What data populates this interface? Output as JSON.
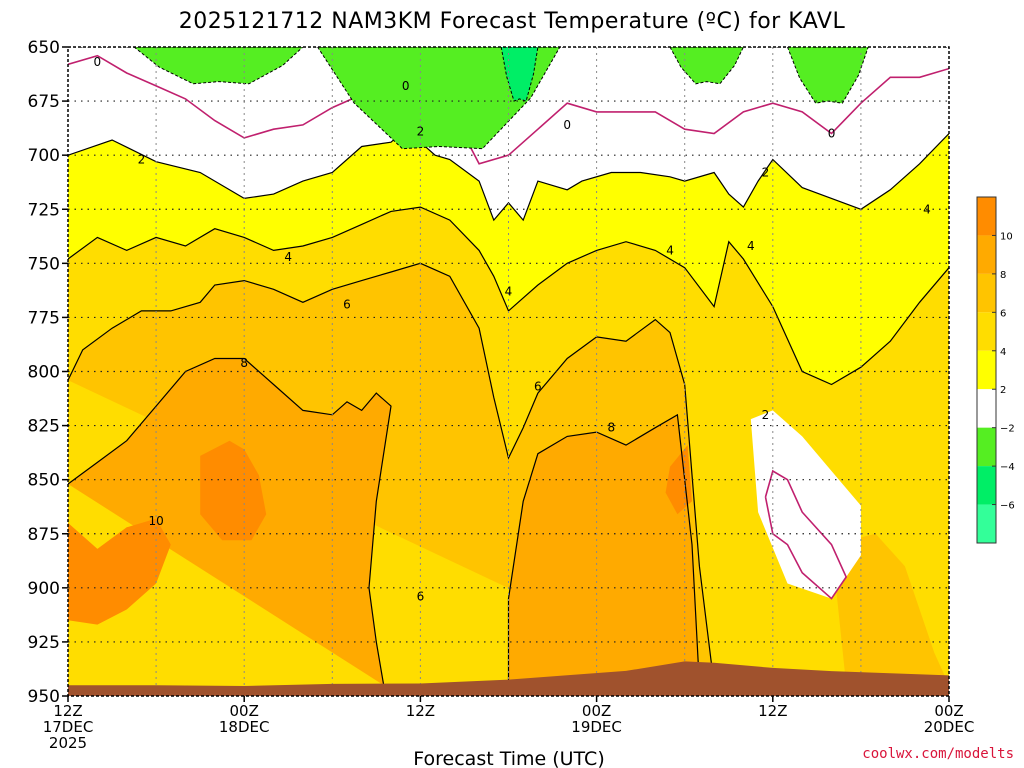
{
  "chart_data": {
    "type": "heatmap",
    "title": "2025121712 NAM3KM Forecast Temperature (ºC) for KAVL",
    "xlabel": "Forecast Time (UTC)",
    "ylabel": "",
    "credit": "coolwx.com/modelts",
    "yaxis": {
      "range": [
        650,
        950
      ],
      "inverted": true,
      "ticks": [
        "650",
        "675",
        "700",
        "725",
        "750",
        "775",
        "800",
        "825",
        "850",
        "875",
        "900",
        "925",
        "950"
      ]
    },
    "xaxis": {
      "range_hours": [
        0,
        60
      ],
      "ticks": [
        {
          "hour": 0,
          "line1": "12Z",
          "line2": "17DEC",
          "line3": "2025"
        },
        {
          "hour": 12,
          "line1": "00Z",
          "line2": "18DEC",
          "line3": ""
        },
        {
          "hour": 24,
          "line1": "12Z",
          "line2": "",
          "line3": ""
        },
        {
          "hour": 36,
          "line1": "00Z",
          "line2": "19DEC",
          "line3": ""
        },
        {
          "hour": 48,
          "line1": "12Z",
          "line2": "",
          "line3": ""
        },
        {
          "hour": 60,
          "line1": "00Z",
          "line2": "20DEC",
          "line3": ""
        }
      ]
    },
    "grid": true,
    "colorbar": {
      "bins": [
        {
          "lo": -8,
          "hi": -6,
          "color": "#33ff99"
        },
        {
          "lo": -6,
          "hi": -4,
          "color": "#00ee66"
        },
        {
          "lo": -4,
          "hi": -2,
          "color": "#55ee22"
        },
        {
          "lo": -2,
          "hi": 2,
          "color": "#ffffff"
        },
        {
          "lo": 2,
          "hi": 4,
          "color": "#ffff00"
        },
        {
          "lo": 4,
          "hi": 6,
          "color": "#ffdd00"
        },
        {
          "lo": 6,
          "hi": 8,
          "color": "#ffc400"
        },
        {
          "lo": 8,
          "hi": 10,
          "color": "#ffaa00"
        },
        {
          "lo": 10,
          "hi": 12,
          "color": "#ff8c00"
        }
      ],
      "labels": [
        "10",
        "8",
        "6",
        "4",
        "2",
        "−2",
        "−4",
        "−6"
      ]
    },
    "contour_labels": [
      {
        "text": "0",
        "hour": 2.0,
        "p": 657
      },
      {
        "text": "0",
        "hour": 23.0,
        "p": 668
      },
      {
        "text": "0",
        "hour": 34.0,
        "p": 686
      },
      {
        "text": "0",
        "hour": 52.0,
        "p": 690
      },
      {
        "text": "2",
        "hour": 5.0,
        "p": 702
      },
      {
        "text": "2",
        "hour": 24.0,
        "p": 689
      },
      {
        "text": "2",
        "hour": 47.5,
        "p": 708
      },
      {
        "text": "4",
        "hour": 15.0,
        "p": 747
      },
      {
        "text": "4",
        "hour": 30.0,
        "p": 763
      },
      {
        "text": "4",
        "hour": 41.0,
        "p": 744
      },
      {
        "text": "4",
        "hour": 46.5,
        "p": 742
      },
      {
        "text": "4",
        "hour": 58.5,
        "p": 725
      },
      {
        "text": "6",
        "hour": 19.0,
        "p": 769
      },
      {
        "text": "6",
        "hour": 32.0,
        "p": 807
      },
      {
        "text": "6",
        "hour": 24.0,
        "p": 904
      },
      {
        "text": "8",
        "hour": 12.0,
        "p": 796
      },
      {
        "text": "8",
        "hour": 37.0,
        "p": 826
      },
      {
        "text": "2",
        "hour": 47.5,
        "p": 820
      },
      {
        "text": "10",
        "hour": 6.0,
        "p": 869
      }
    ],
    "fields": {
      "minus_regions": [
        {
          "name": "cold-pocket-a",
          "band": "-4 to -2",
          "hours": [
            4.5,
            16.0
          ],
          "p_top": 650,
          "p_bottom": 667
        },
        {
          "name": "cold-pocket-b",
          "band": "-4 to -2",
          "hours": [
            17.0,
            33.5
          ],
          "p_top": 650,
          "p_bottom": 697
        },
        {
          "name": "cold-core-b",
          "band": "-6 to -4",
          "hours": [
            29.5,
            32.0
          ],
          "p_top": 650,
          "p_bottom": 675
        },
        {
          "name": "cold-pocket-c",
          "band": "-4 to -2",
          "hours": [
            41.0,
            46.0
          ],
          "p_top": 650,
          "p_bottom": 667
        },
        {
          "name": "cold-pocket-d",
          "band": "-4 to -2",
          "hours": [
            49.0,
            54.5
          ],
          "p_top": 650,
          "p_bottom": 676
        }
      ],
      "terrain": {
        "band": "surface",
        "p_surface_start": 945,
        "p_surface_peak": 934
      }
    }
  }
}
